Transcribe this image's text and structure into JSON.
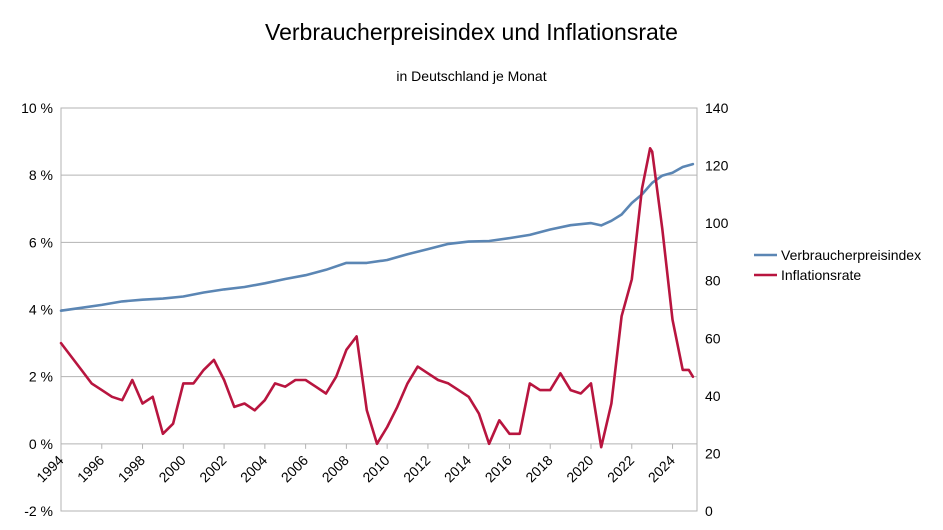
{
  "chart_data": {
    "type": "line",
    "title": "Verbraucherpreisindex und Inflationsrate",
    "subtitle": "in Deutschland je Monat",
    "x_ticks": [
      "1994",
      "1996",
      "1998",
      "2000",
      "2002",
      "2004",
      "2006",
      "2008",
      "2010",
      "2012",
      "2014",
      "2016",
      "2018",
      "2020",
      "2022",
      "2024"
    ],
    "x_range": [
      1994,
      2025.2
    ],
    "y_left": {
      "range": [
        -2,
        10
      ],
      "ticks": [
        "-2 %",
        "0 %",
        "2 %",
        "4 %",
        "6 %",
        "8 %",
        "10 %"
      ]
    },
    "y_right": {
      "range": [
        0,
        140
      ],
      "ticks": [
        "0",
        "20",
        "40",
        "60",
        "80",
        "100",
        "120",
        "140"
      ]
    },
    "grid": true,
    "legend_position": "right",
    "series": [
      {
        "name": "Verbraucherpreisindex",
        "axis": "right",
        "color": "#5b86b4",
        "points": [
          [
            1994.0,
            69.6
          ],
          [
            1995.0,
            70.6
          ],
          [
            1996.0,
            71.6
          ],
          [
            1997.0,
            72.8
          ],
          [
            1998.0,
            73.4
          ],
          [
            1999.0,
            73.8
          ],
          [
            2000.0,
            74.5
          ],
          [
            2001.0,
            75.9
          ],
          [
            2002.0,
            77.0
          ],
          [
            2003.0,
            77.8
          ],
          [
            2004.0,
            79.1
          ],
          [
            2005.0,
            80.6
          ],
          [
            2006.0,
            81.9
          ],
          [
            2007.0,
            83.8
          ],
          [
            2008.0,
            86.2
          ],
          [
            2009.0,
            86.2
          ],
          [
            2010.0,
            87.2
          ],
          [
            2011.0,
            89.2
          ],
          [
            2012.0,
            91.0
          ],
          [
            2013.0,
            92.8
          ],
          [
            2014.0,
            93.6
          ],
          [
            2015.0,
            93.8
          ],
          [
            2016.0,
            94.8
          ],
          [
            2017.0,
            95.9
          ],
          [
            2018.0,
            97.8
          ],
          [
            2019.0,
            99.3
          ],
          [
            2020.0,
            100.0
          ],
          [
            2020.5,
            99.2
          ],
          [
            2021.0,
            100.8
          ],
          [
            2021.5,
            103.0
          ],
          [
            2022.0,
            107.0
          ],
          [
            2022.5,
            110.0
          ],
          [
            2023.0,
            114.0
          ],
          [
            2023.5,
            116.5
          ],
          [
            2024.0,
            117.5
          ],
          [
            2024.5,
            119.5
          ],
          [
            2025.0,
            120.5
          ]
        ]
      },
      {
        "name": "Inflationsrate",
        "axis": "left",
        "color": "#b8153f",
        "points": [
          [
            1994.0,
            3.0
          ],
          [
            1994.5,
            2.6
          ],
          [
            1995.0,
            2.2
          ],
          [
            1995.5,
            1.8
          ],
          [
            1996.0,
            1.6
          ],
          [
            1996.5,
            1.4
          ],
          [
            1997.0,
            1.3
          ],
          [
            1997.5,
            1.9
          ],
          [
            1998.0,
            1.2
          ],
          [
            1998.5,
            1.4
          ],
          [
            1999.0,
            0.3
          ],
          [
            1999.5,
            0.6
          ],
          [
            2000.0,
            1.8
          ],
          [
            2000.5,
            1.8
          ],
          [
            2001.0,
            2.2
          ],
          [
            2001.5,
            2.5
          ],
          [
            2002.0,
            1.9
          ],
          [
            2002.5,
            1.1
          ],
          [
            2003.0,
            1.2
          ],
          [
            2003.5,
            1.0
          ],
          [
            2004.0,
            1.3
          ],
          [
            2004.5,
            1.8
          ],
          [
            2005.0,
            1.7
          ],
          [
            2005.5,
            1.9
          ],
          [
            2006.0,
            1.9
          ],
          [
            2006.5,
            1.7
          ],
          [
            2007.0,
            1.5
          ],
          [
            2007.5,
            2.0
          ],
          [
            2008.0,
            2.8
          ],
          [
            2008.5,
            3.2
          ],
          [
            2009.0,
            1.0
          ],
          [
            2009.5,
            0.0
          ],
          [
            2010.0,
            0.5
          ],
          [
            2010.5,
            1.1
          ],
          [
            2011.0,
            1.8
          ],
          [
            2011.5,
            2.3
          ],
          [
            2012.0,
            2.1
          ],
          [
            2012.5,
            1.9
          ],
          [
            2013.0,
            1.8
          ],
          [
            2013.5,
            1.6
          ],
          [
            2014.0,
            1.4
          ],
          [
            2014.5,
            0.9
          ],
          [
            2015.0,
            0.0
          ],
          [
            2015.5,
            0.7
          ],
          [
            2016.0,
            0.3
          ],
          [
            2016.5,
            0.3
          ],
          [
            2017.0,
            1.8
          ],
          [
            2017.5,
            1.6
          ],
          [
            2018.0,
            1.6
          ],
          [
            2018.5,
            2.1
          ],
          [
            2019.0,
            1.6
          ],
          [
            2019.5,
            1.5
          ],
          [
            2020.0,
            1.8
          ],
          [
            2020.5,
            -0.1
          ],
          [
            2021.0,
            1.2
          ],
          [
            2021.5,
            3.8
          ],
          [
            2022.0,
            4.9
          ],
          [
            2022.5,
            7.6
          ],
          [
            2022.9,
            8.8
          ],
          [
            2023.0,
            8.7
          ],
          [
            2023.5,
            6.4
          ],
          [
            2024.0,
            3.7
          ],
          [
            2024.5,
            2.2
          ],
          [
            2024.8,
            2.2
          ],
          [
            2025.0,
            2.0
          ]
        ]
      }
    ]
  }
}
